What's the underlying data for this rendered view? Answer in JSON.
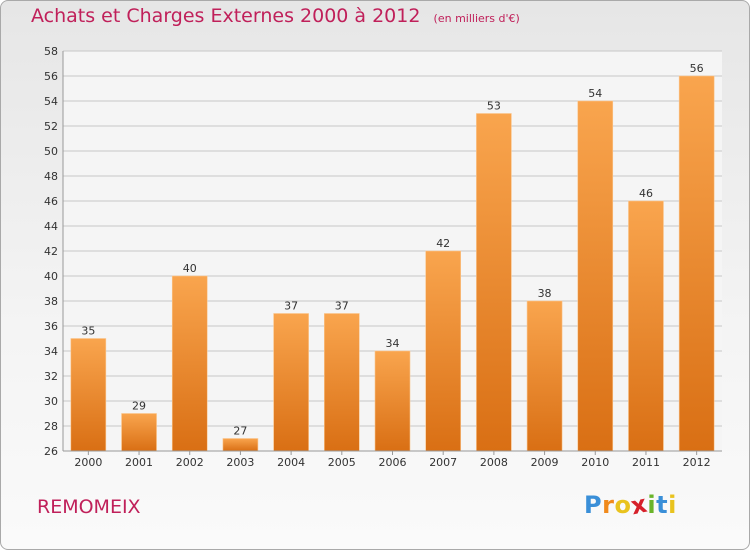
{
  "header": {
    "title": "Achats et Charges Externes 2000 à 2012",
    "unit": "(en milliers d'€)"
  },
  "footer": {
    "place": "REMOMEIX",
    "logo": "Proxiti"
  },
  "colors": {
    "title": "#c0205a",
    "bar_top": "#f9a54e",
    "bar_bottom": "#d96f14",
    "grid": "#c8c8c8"
  },
  "chart_data": {
    "type": "bar",
    "title": "Achats et Charges Externes 2000 à 2012",
    "subtitle": "(en milliers d'€)",
    "xlabel": "",
    "ylabel": "",
    "categories": [
      "2000",
      "2001",
      "2002",
      "2003",
      "2004",
      "2005",
      "2006",
      "2007",
      "2008",
      "2009",
      "2010",
      "2011",
      "2012"
    ],
    "values": [
      35,
      29,
      40,
      27,
      37,
      37,
      34,
      42,
      53,
      38,
      54,
      46,
      56
    ],
    "ylim": [
      26,
      58
    ],
    "yticks": [
      26,
      28,
      30,
      32,
      34,
      36,
      38,
      40,
      42,
      44,
      46,
      48,
      50,
      52,
      54,
      56,
      58
    ],
    "grid": true,
    "data_labels": true
  }
}
